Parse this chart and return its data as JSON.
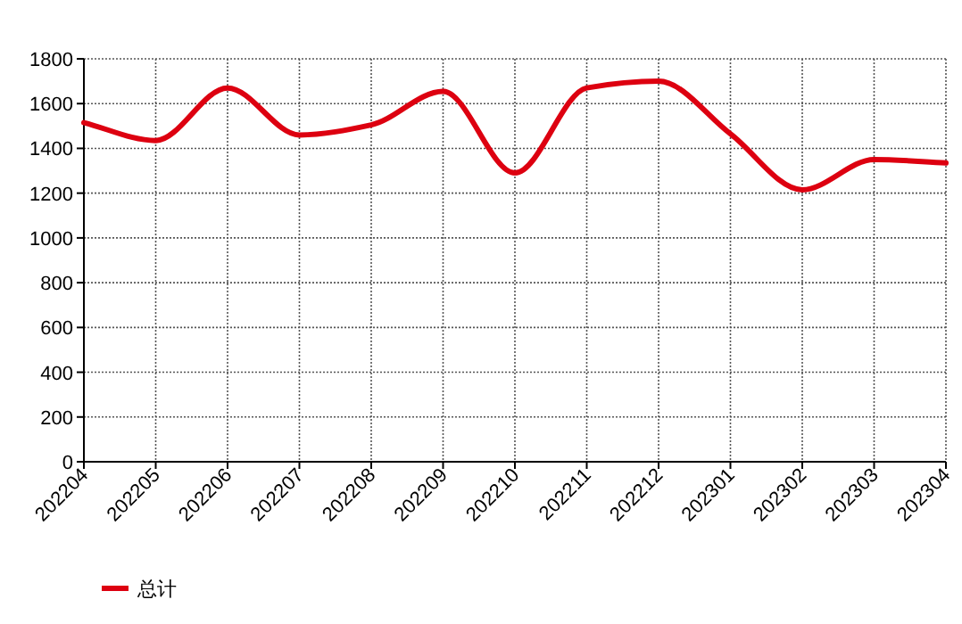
{
  "chart_data": {
    "type": "line",
    "categories": [
      "202204",
      "202205",
      "202206",
      "202207",
      "202208",
      "202209",
      "202210",
      "202211",
      "202212",
      "202301",
      "202302",
      "202303",
      "202304"
    ],
    "series": [
      {
        "name": "总计",
        "color": "#dd0010",
        "values": [
          1515,
          1435,
          1670,
          1460,
          1505,
          1655,
          1290,
          1670,
          1700,
          1465,
          1215,
          1350,
          1335
        ]
      }
    ],
    "ylim": [
      0,
      1800
    ],
    "yticks": [
      0,
      200,
      400,
      600,
      800,
      1000,
      1200,
      1400,
      1600,
      1800
    ],
    "grid": true,
    "legend": "bottom",
    "marker": "none",
    "line_style": "solid"
  }
}
